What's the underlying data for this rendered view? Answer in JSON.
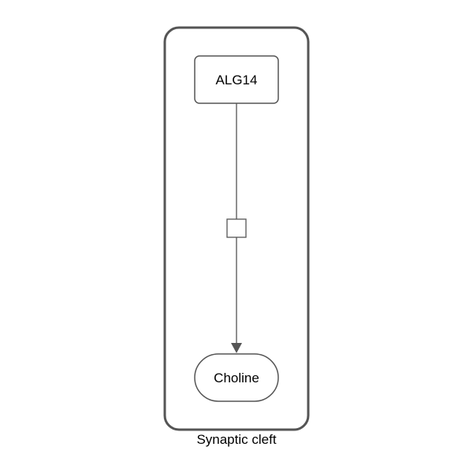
{
  "diagram": {
    "compartment": {
      "label": "Synaptic cleft"
    },
    "nodes": {
      "source": {
        "label": "ALG14",
        "shape": "rounded-rectangle"
      },
      "process": {
        "label": "",
        "shape": "square"
      },
      "target": {
        "label": "Choline",
        "shape": "stadium"
      }
    },
    "edges": [
      {
        "from": "source",
        "to": "process",
        "arrow": "none"
      },
      {
        "from": "process",
        "to": "target",
        "arrow": "triangle"
      }
    ],
    "colors": {
      "stroke": "#555555",
      "compartment_stroke": "#555555",
      "fill": "#ffffff",
      "text": "#000000"
    }
  }
}
